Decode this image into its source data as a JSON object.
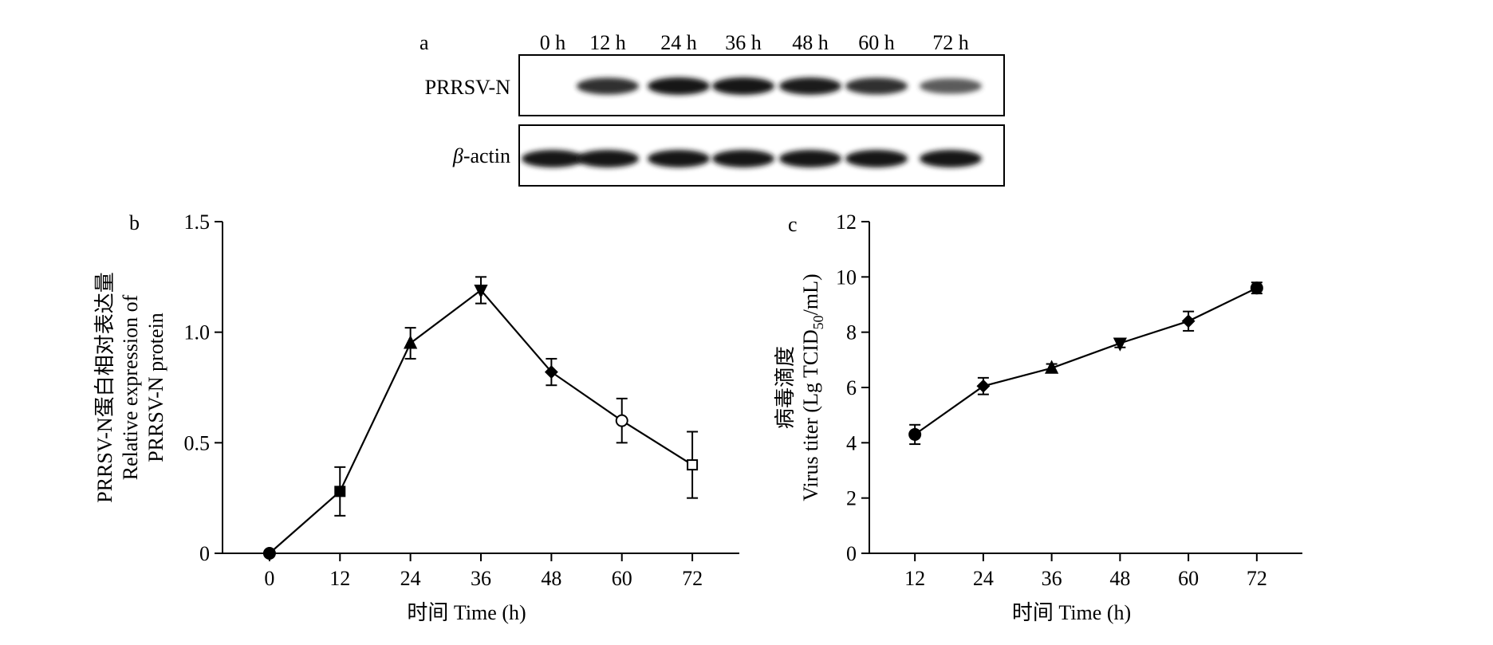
{
  "panels": {
    "a": "a",
    "b": "b",
    "c": "c"
  },
  "blot": {
    "lanes": [
      "0 h",
      "12 h",
      "24 h",
      "36 h",
      "48 h",
      "60 h",
      "72 h"
    ],
    "rows": [
      {
        "label_prefix": "",
        "label_italic": "",
        "label_text": "PRRSV-N",
        "band_intensity": [
          0.0,
          0.85,
          1.0,
          1.0,
          0.95,
          0.85,
          0.6
        ]
      },
      {
        "label_prefix": "",
        "label_italic": "β",
        "label_text": "-actin",
        "band_intensity": [
          1.0,
          1.0,
          1.0,
          1.0,
          1.0,
          1.0,
          1.0
        ]
      }
    ]
  },
  "chart_data": [
    {
      "type": "line",
      "panel": "b",
      "xlabel": "时间 Time (h)",
      "ylabel_lines": [
        "PRRSV-N蛋白相对表达量",
        "Relative expression of",
        "PRRSV-N protein"
      ],
      "x": [
        0,
        12,
        24,
        36,
        48,
        60,
        72
      ],
      "xticks": [
        "0",
        "12",
        "24",
        "36",
        "48",
        "60",
        "72"
      ],
      "xlim": [
        -8,
        80
      ],
      "ylim": [
        0,
        1.5
      ],
      "yticks": [
        "0",
        "0.5",
        "1.0",
        "1.5"
      ],
      "ytick_values": [
        0,
        0.5,
        1.0,
        1.5
      ],
      "series": [
        {
          "values": [
            0.0,
            0.28,
            0.95,
            1.19,
            0.82,
            0.6,
            0.4
          ],
          "errors": [
            0.0,
            0.11,
            0.07,
            0.06,
            0.06,
            0.1,
            0.15
          ],
          "markers": [
            "circle-filled",
            "square-filled",
            "triangle-up-filled",
            "triangle-down-filled",
            "diamond-filled",
            "circle-open",
            "square-open"
          ]
        }
      ]
    },
    {
      "type": "line",
      "panel": "c",
      "xlabel": "时间 Time (h)",
      "ylabel_line1": "病毒滴度",
      "ylabel_line2_main": "Virus titer (Lg TCID",
      "ylabel_line2_sub": "50",
      "ylabel_line2_end": "/mL)",
      "x": [
        12,
        24,
        36,
        48,
        60,
        72
      ],
      "xticks": [
        "12",
        "24",
        "36",
        "48",
        "60",
        "72"
      ],
      "xlim": [
        4,
        80
      ],
      "ylim": [
        0,
        12
      ],
      "yticks": [
        "0",
        "2",
        "4",
        "6",
        "8",
        "10",
        "12"
      ],
      "ytick_values": [
        0,
        2,
        4,
        6,
        8,
        10,
        12
      ],
      "series": [
        {
          "values": [
            4.3,
            6.05,
            6.7,
            7.6,
            8.4,
            9.6
          ],
          "errors": [
            0.35,
            0.3,
            0.15,
            0.15,
            0.35,
            0.2
          ],
          "markers": [
            "circle-filled",
            "diamond-filled",
            "triangle-up-filled",
            "triangle-down-filled",
            "diamond-filled",
            "circle-filled"
          ]
        }
      ]
    }
  ]
}
